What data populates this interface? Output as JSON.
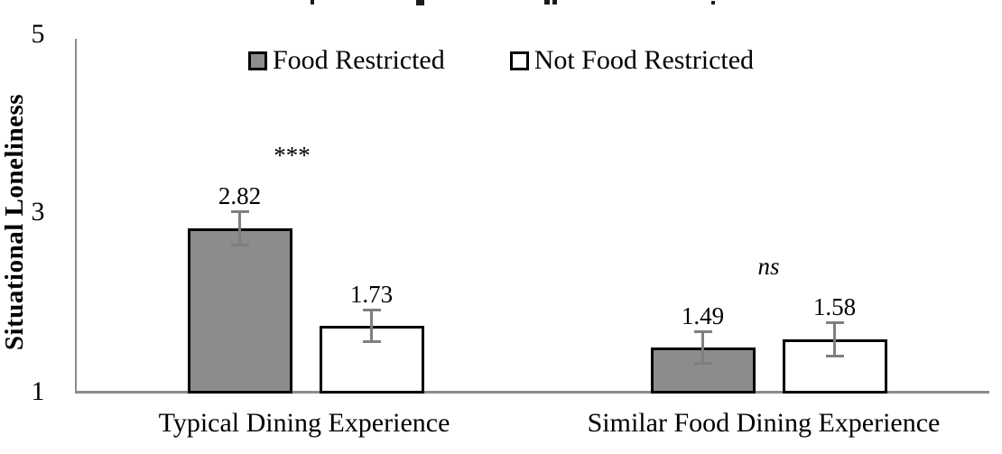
{
  "chart_data": {
    "type": "bar",
    "title": "",
    "ylabel": "Situational Loneliness",
    "xlabel": "",
    "ylim": [
      1,
      5
    ],
    "ytick_labels": [
      "5",
      "3",
      "1"
    ],
    "grid": "off",
    "legend_position": "top-center",
    "categories": [
      "Typical Dining Experience",
      "Similar Food Dining Experience"
    ],
    "series": [
      {
        "name": "Food Restricted",
        "fill": "#8a8c8e",
        "values": [
          2.82,
          1.49
        ],
        "errors": [
          0.2,
          0.19
        ]
      },
      {
        "name": "Not Food Restricted",
        "fill": "#ffffff",
        "values": [
          1.73,
          1.58
        ],
        "errors": [
          0.19,
          0.2
        ]
      }
    ],
    "value_label_format": "2dp",
    "significance": [
      {
        "group": 0,
        "label": "***",
        "style": "normal"
      },
      {
        "group": 1,
        "label": "ns",
        "style": "italic"
      }
    ],
    "colors": {
      "bar_border": "#000000",
      "axis_gray": "#8c8c8c",
      "error_bar_gray": "#7f7f7f",
      "text": "#000000",
      "background": "#ffffff"
    }
  }
}
